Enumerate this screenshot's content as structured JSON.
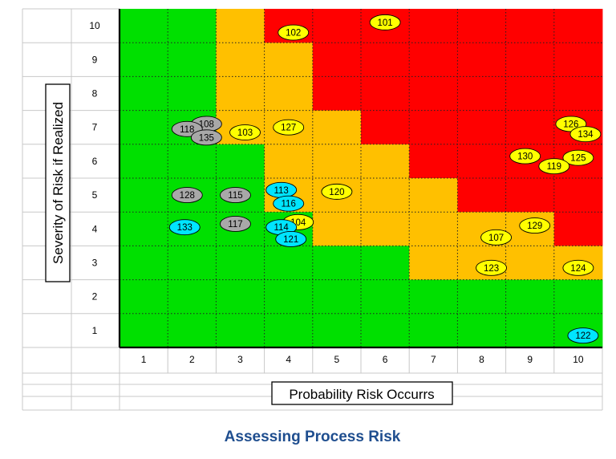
{
  "caption": "Assessing Process Risk",
  "chart_data": {
    "type": "heatmap",
    "xlabel": "Probability Risk Occurrs",
    "ylabel": "Severity of Risk if Realized",
    "x_categories": [
      1,
      2,
      3,
      4,
      5,
      6,
      7,
      8,
      9,
      10
    ],
    "y_categories": [
      1,
      2,
      3,
      4,
      5,
      6,
      7,
      8,
      9,
      10
    ],
    "colors": {
      "G": "#00e000",
      "Y": "#ffc000",
      "R": "#ff0000"
    },
    "grid_rows_top_to_bottom": [
      "GGYRRRRRRR",
      "GGYYRRRRRR",
      "GGYYRRRRRR",
      "GGYYYRRRRR",
      "GGGYYYRRRR",
      "GGGYYYYRRR",
      "GGGGYYYYYR",
      "GGGGGGYYYY",
      "GGGGGGGGGG",
      "GGGGGGGGGG"
    ],
    "marker_colors": {
      "yellow": "#ffff00",
      "gray": "#a8a8a8",
      "cyan": "#00e5ff"
    },
    "risks": [
      {
        "id": "101",
        "x": 6.0,
        "y": 10.1,
        "color": "yellow"
      },
      {
        "id": "102",
        "x": 4.1,
        "y": 9.8,
        "color": "yellow"
      },
      {
        "id": "103",
        "x": 3.1,
        "y": 6.85,
        "color": "yellow"
      },
      {
        "id": "127",
        "x": 4.0,
        "y": 7.0,
        "color": "yellow"
      },
      {
        "id": "126",
        "x": 9.85,
        "y": 7.1,
        "color": "yellow"
      },
      {
        "id": "134",
        "x": 10.15,
        "y": 6.8,
        "color": "yellow"
      },
      {
        "id": "130",
        "x": 8.9,
        "y": 6.15,
        "color": "yellow"
      },
      {
        "id": "125",
        "x": 10.0,
        "y": 6.1,
        "color": "yellow"
      },
      {
        "id": "119",
        "x": 9.5,
        "y": 5.85,
        "color": "yellow"
      },
      {
        "id": "120",
        "x": 5.0,
        "y": 5.1,
        "color": "yellow"
      },
      {
        "id": "104",
        "x": 4.2,
        "y": 4.2,
        "color": "yellow"
      },
      {
        "id": "129",
        "x": 9.1,
        "y": 4.1,
        "color": "yellow"
      },
      {
        "id": "107",
        "x": 8.3,
        "y": 3.75,
        "color": "yellow"
      },
      {
        "id": "123",
        "x": 8.2,
        "y": 2.85,
        "color": "yellow"
      },
      {
        "id": "124",
        "x": 10.0,
        "y": 2.85,
        "color": "yellow"
      },
      {
        "id": "108",
        "x": 2.3,
        "y": 7.1,
        "color": "gray"
      },
      {
        "id": "118",
        "x": 1.9,
        "y": 6.95,
        "color": "gray"
      },
      {
        "id": "135",
        "x": 2.3,
        "y": 6.7,
        "color": "gray"
      },
      {
        "id": "128",
        "x": 1.9,
        "y": 5.0,
        "color": "gray"
      },
      {
        "id": "115",
        "x": 2.9,
        "y": 5.0,
        "color": "gray"
      },
      {
        "id": "117",
        "x": 2.9,
        "y": 4.15,
        "color": "gray"
      },
      {
        "id": "113",
        "x": 3.85,
        "y": 5.15,
        "color": "cyan"
      },
      {
        "id": "116",
        "x": 4.0,
        "y": 4.75,
        "color": "cyan"
      },
      {
        "id": "133",
        "x": 1.85,
        "y": 4.05,
        "color": "cyan"
      },
      {
        "id": "114",
        "x": 3.85,
        "y": 4.05,
        "color": "cyan"
      },
      {
        "id": "121",
        "x": 4.05,
        "y": 3.7,
        "color": "cyan"
      },
      {
        "id": "122",
        "x": 10.1,
        "y": 0.85,
        "color": "cyan"
      }
    ]
  }
}
